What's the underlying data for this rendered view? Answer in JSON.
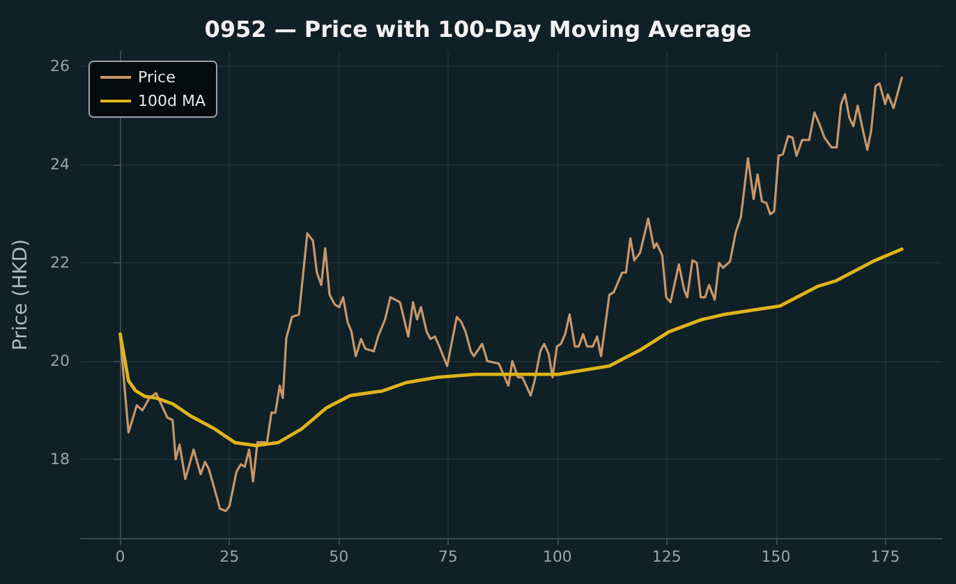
{
  "chart_data": {
    "type": "line",
    "title": "0952 — Price with 100-Day Moving Average",
    "ylabel": "Price (HKD)",
    "xlim": [
      -9,
      188
    ],
    "xticks": [
      0,
      25,
      50,
      75,
      100,
      125,
      150,
      175
    ],
    "ylim": [
      16.4,
      26.3
    ],
    "yticks": [
      18,
      20,
      22,
      24,
      26
    ],
    "grid": true,
    "legend": "top left",
    "marker": "none",
    "line_style": "solid",
    "series": [
      {
        "name": "Price",
        "color": "#c8976a",
        "x": [
          0,
          1.9,
          3.8,
          5.1,
          6.7,
          8.2,
          9.5,
          10.8,
          12.0,
          12.7,
          13.6,
          14.9,
          16.8,
          18.4,
          19.4,
          20.3,
          22.2,
          22.8,
          24.1,
          25.0,
          26.6,
          27.6,
          28.5,
          29.5,
          30.4,
          31.4,
          33.6,
          34.6,
          35.5,
          36.5,
          37.2,
          38.0,
          39.3,
          40.9,
          42.8,
          44.1,
          45.0,
          46.0,
          46.9,
          47.9,
          49.1,
          50.1,
          51.0,
          52.0,
          52.9,
          53.9,
          55.1,
          56.1,
          58.0,
          59.0,
          60.6,
          61.8,
          64.0,
          65.9,
          67.0,
          67.9,
          68.8,
          70.1,
          71.0,
          72.0,
          73.0,
          74.8,
          77.0,
          78.0,
          79.0,
          80.2,
          80.9,
          82.8,
          84.0,
          86.6,
          88.8,
          89.7,
          91.0,
          92.0,
          93.9,
          94.8,
          96.1,
          97.0,
          98.0,
          98.9,
          99.9,
          100.8,
          101.8,
          102.8,
          104.0,
          104.9,
          105.9,
          106.8,
          108.1,
          109.1,
          110.0,
          111.9,
          112.9,
          114.8,
          115.7,
          116.7,
          117.6,
          118.9,
          120.8,
          122.1,
          122.7,
          124.0,
          124.9,
          125.9,
          127.8,
          129.0,
          129.7,
          130.9,
          131.9,
          132.8,
          133.8,
          134.7,
          136.0,
          137.0,
          137.9,
          139.5,
          140.8,
          142.0,
          143.6,
          144.9,
          145.8,
          146.8,
          147.8,
          148.7,
          149.6,
          150.6,
          151.6,
          152.8,
          153.8,
          154.7,
          156.0,
          157.6,
          158.8,
          159.8,
          161.1,
          162.7,
          163.9,
          164.9,
          165.8,
          166.8,
          167.7,
          168.7,
          169.9,
          170.9,
          171.8,
          172.8,
          173.7,
          175.0,
          175.6,
          176.9,
          178.8
        ],
        "values": [
          20.5,
          18.55,
          19.1,
          19.0,
          19.25,
          19.35,
          19.1,
          18.85,
          18.8,
          18.0,
          18.3,
          17.6,
          18.2,
          17.7,
          17.95,
          17.8,
          17.2,
          17.0,
          16.95,
          17.05,
          17.75,
          17.9,
          17.85,
          18.2,
          17.55,
          18.35,
          18.35,
          18.95,
          18.95,
          19.5,
          19.25,
          20.47,
          20.9,
          20.95,
          22.6,
          22.45,
          21.8,
          21.55,
          22.3,
          21.35,
          21.15,
          21.1,
          21.3,
          20.8,
          20.6,
          20.1,
          20.45,
          20.25,
          20.2,
          20.5,
          20.85,
          21.3,
          21.2,
          20.5,
          21.2,
          20.85,
          21.1,
          20.6,
          20.45,
          20.5,
          20.3,
          19.9,
          20.9,
          20.8,
          20.6,
          20.2,
          20.1,
          20.35,
          20.0,
          19.95,
          19.5,
          20.0,
          19.67,
          19.67,
          19.3,
          19.6,
          20.2,
          20.35,
          20.15,
          19.67,
          20.3,
          20.35,
          20.55,
          20.95,
          20.3,
          20.3,
          20.55,
          20.3,
          20.3,
          20.5,
          20.1,
          21.35,
          21.4,
          21.8,
          21.8,
          22.5,
          22.05,
          22.2,
          22.9,
          22.3,
          22.4,
          22.15,
          21.3,
          21.2,
          21.97,
          21.45,
          21.3,
          22.05,
          22.0,
          21.3,
          21.3,
          21.55,
          21.25,
          22.0,
          21.9,
          22.03,
          22.62,
          22.94,
          24.13,
          23.3,
          23.8,
          23.25,
          23.22,
          22.99,
          23.05,
          24.18,
          24.21,
          24.58,
          24.55,
          24.18,
          24.5,
          24.5,
          25.06,
          24.86,
          24.55,
          24.35,
          24.35,
          25.23,
          25.43,
          24.95,
          24.78,
          25.2,
          24.7,
          24.3,
          24.7,
          25.6,
          25.65,
          25.23,
          25.43,
          25.15,
          25.77
        ]
      },
      {
        "name": "100d MA",
        "color": "#e0b419",
        "x": [
          0,
          1.9,
          3.5,
          5.7,
          8.2,
          12.0,
          16.2,
          21.6,
          26.3,
          31.1,
          36.1,
          41.5,
          47.2,
          52.6,
          59.9,
          65.3,
          72.6,
          81.2,
          87.5,
          100.2,
          111.9,
          119.2,
          125.6,
          132.8,
          138.2,
          150.9,
          159.5,
          163.6,
          172.2,
          178.8
        ],
        "values": [
          20.55,
          19.6,
          19.4,
          19.28,
          19.25,
          19.13,
          18.88,
          18.62,
          18.34,
          18.28,
          18.34,
          18.62,
          19.05,
          19.3,
          19.39,
          19.56,
          19.67,
          19.73,
          19.73,
          19.73,
          19.9,
          20.24,
          20.6,
          20.84,
          20.95,
          21.12,
          21.52,
          21.63,
          22.03,
          22.28
        ]
      }
    ]
  }
}
